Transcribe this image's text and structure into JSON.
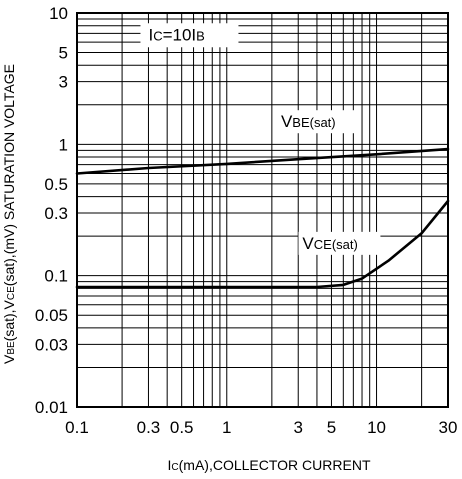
{
  "chart_data": {
    "type": "line",
    "xscale": "log",
    "yscale": "log",
    "xlim": [
      0.1,
      30
    ],
    "ylim": [
      0.01,
      10
    ],
    "grid": true,
    "xlabel": "IC(mA),COLLECTOR CURRENT",
    "ylabel": "VBE(sat),VCE(sat),(mV) SATURATION VOLTAGE",
    "x_ticks": [
      {
        "value": 0.1,
        "label": "0.1"
      },
      {
        "value": 0.3,
        "label": "0.3"
      },
      {
        "value": 0.5,
        "label": "0.5"
      },
      {
        "value": 1,
        "label": "1"
      },
      {
        "value": 3,
        "label": "3"
      },
      {
        "value": 5,
        "label": "5"
      },
      {
        "value": 10,
        "label": "10"
      },
      {
        "value": 30,
        "label": "30"
      }
    ],
    "y_ticks": [
      {
        "value": 10,
        "label": "10"
      },
      {
        "value": 5,
        "label": "5"
      },
      {
        "value": 3,
        "label": "3"
      },
      {
        "value": 1,
        "label": "1"
      },
      {
        "value": 0.5,
        "label": "0.5"
      },
      {
        "value": 0.3,
        "label": "0.3"
      },
      {
        "value": 0.1,
        "label": "0.1"
      },
      {
        "value": 0.05,
        "label": "0.05"
      },
      {
        "value": 0.03,
        "label": "0.03"
      },
      {
        "value": 0.01,
        "label": "0.01"
      }
    ],
    "condition": {
      "text": "IC=10IB",
      "x": 0.3,
      "y": 6.2
    },
    "series": [
      {
        "name": "VBE(sat)",
        "label_x": 2.3,
        "label_y": 1.35,
        "x": [
          0.1,
          0.3,
          1,
          3,
          10,
          30
        ],
        "y": [
          0.6,
          0.66,
          0.71,
          0.77,
          0.84,
          0.92
        ]
      },
      {
        "name": "VCE(sat)",
        "label_x": 3.2,
        "label_y": 0.16,
        "x": [
          0.1,
          1,
          4,
          6,
          8,
          12,
          20,
          30
        ],
        "y": [
          0.082,
          0.082,
          0.082,
          0.085,
          0.095,
          0.13,
          0.21,
          0.37
        ]
      }
    ]
  }
}
